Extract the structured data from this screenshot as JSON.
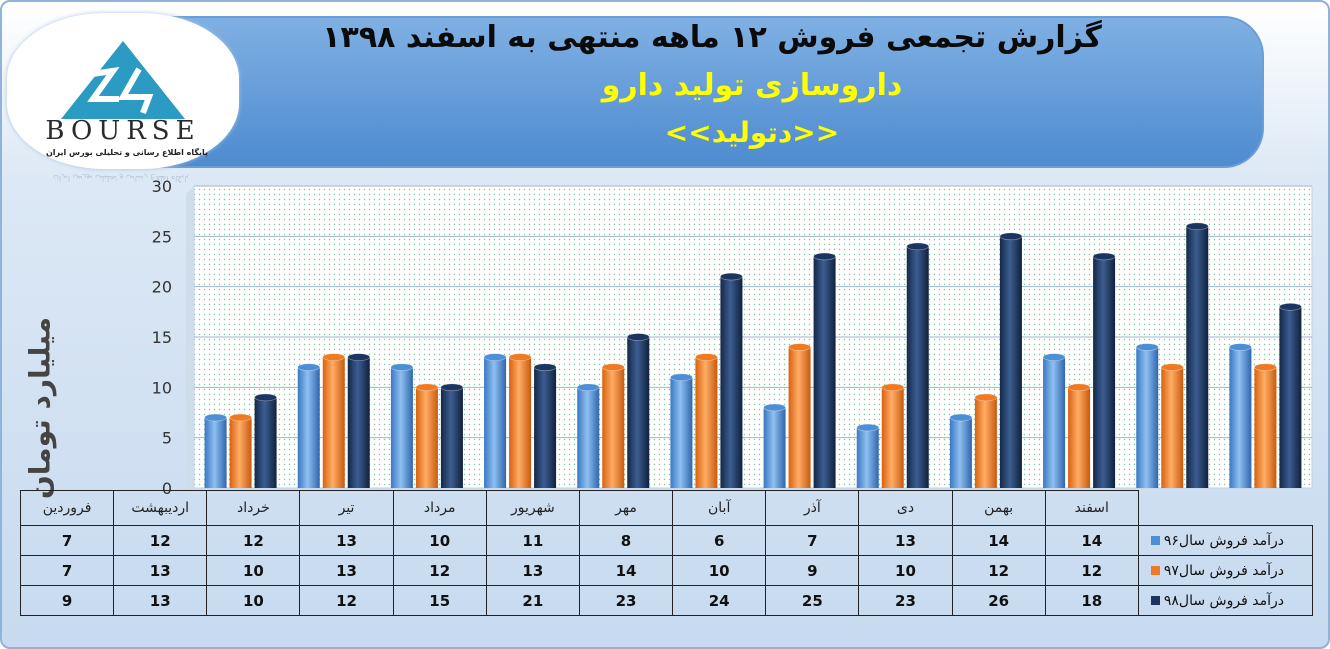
{
  "header": {
    "title_line1": "گزارش تجمعی فروش  ۱۲ ماهه منتهی به اسفند ۱۳۹۸",
    "title_line2": "داروسازی تولید دارو",
    "title_line3": "<<دتولید>>"
  },
  "logo": {
    "brand": "BOURSE",
    "number": "24",
    "caption": "پایگاه اطلاع رسانی و تحلیلی بورس ایران"
  },
  "chart_data": {
    "type": "bar",
    "ylabel": "میلیارد تومان",
    "ylim": [
      0,
      30
    ],
    "yticks": [
      "0",
      "5",
      "10",
      "15",
      "20",
      "25",
      "30"
    ],
    "grid": true,
    "legend": "left of data table",
    "categories": [
      "فروردین",
      "اردیبهشت",
      "خرداد",
      "تیر",
      "مرداد",
      "شهریور",
      "مهر",
      "آبان",
      "آذر",
      "دی",
      "بهمن",
      "اسفند"
    ],
    "series": [
      {
        "name": "درآمد فروش سال۹۶",
        "color": "#4d8fd6",
        "values": [
          7,
          12,
          12,
          13,
          10,
          11,
          8,
          6,
          7,
          13,
          14,
          14
        ]
      },
      {
        "name": "درآمد فروش سال۹۷",
        "color": "#f07a22",
        "values": [
          7,
          13,
          10,
          13,
          12,
          13,
          14,
          10,
          9,
          10,
          12,
          12
        ]
      },
      {
        "name": "درآمد فروش سال۹۸",
        "color": "#1c3560",
        "values": [
          9,
          13,
          10,
          12,
          15,
          21,
          23,
          24,
          25,
          23,
          26,
          18
        ]
      }
    ]
  }
}
